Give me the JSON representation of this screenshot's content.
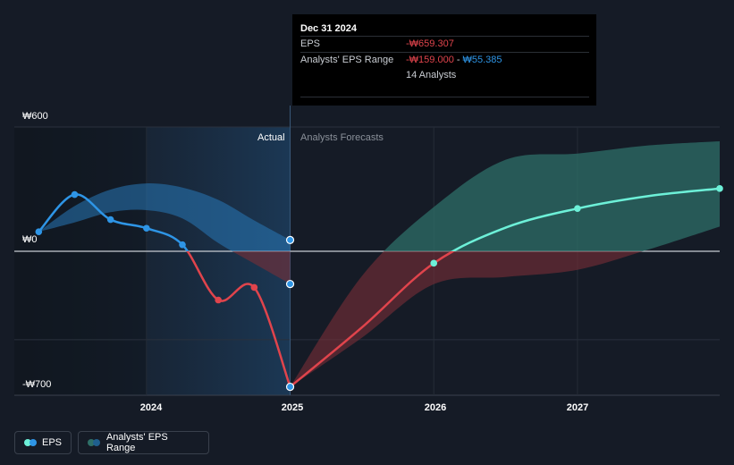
{
  "tooltip": {
    "date": "Dec 31 2024",
    "eps_label": "EPS",
    "eps_value": "-₩659.307",
    "range_label": "Analysts' EPS Range",
    "range_low": "-₩159.000",
    "range_sep": "-",
    "range_high": "₩55.385",
    "analysts": "14 Analysts"
  },
  "regions": {
    "actual": "Actual",
    "forecast": "Analysts Forecasts"
  },
  "legend": {
    "eps": "EPS",
    "range": "Analysts' EPS Range"
  },
  "colors": {
    "background": "#151b26",
    "eps_positive": "#2e95e6",
    "eps_negative": "#e0444c",
    "forecast_line": "#6df0d8",
    "band_positive": "#2e6f68",
    "band_negative": "#7a2e37"
  },
  "chart_data": {
    "type": "line",
    "y_tick_labels": [
      "₩600",
      "₩0",
      "-₩700"
    ],
    "y_ticks": [
      600,
      0,
      -700
    ],
    "ylim": [
      -700,
      600
    ],
    "x_tick_labels": [
      "2024",
      "2025",
      "2026",
      "2027"
    ],
    "x_ticks": [
      2024.0,
      2025.0,
      2026.0,
      2027.0
    ],
    "xlim": [
      2023.08,
      2027.99
    ],
    "actual_eps": {
      "x": [
        2023.25,
        2023.5,
        2023.75,
        2024.0,
        2024.25,
        2024.5,
        2024.75,
        2025.0
      ],
      "y": [
        95,
        276,
        154,
        112,
        32,
        -237,
        -176,
        -659
      ]
    },
    "estimate_points": {
      "x": [
        2025.0,
        2025.0
      ],
      "y": [
        55,
        -159
      ]
    },
    "past_estimate_band": {
      "x": [
        2023.25,
        2023.5,
        2023.75,
        2024.0,
        2024.25,
        2024.5,
        2024.75,
        2025.0
      ],
      "high": [
        95,
        220,
        300,
        330,
        310,
        250,
        150,
        55
      ],
      "low": [
        95,
        140,
        190,
        200,
        160,
        40,
        -60,
        -159
      ]
    },
    "forecast_eps": {
      "x": [
        2025.0,
        2025.5,
        2026.0,
        2026.5,
        2027.0,
        2027.5,
        2027.99
      ],
      "y": [
        -659,
        -370,
        -58,
        115,
        208,
        269,
        305
      ]
    },
    "forecast_band": {
      "x": [
        2025.0,
        2025.5,
        2026.0,
        2026.5,
        2027.0,
        2027.5,
        2027.99
      ],
      "high": [
        -659,
        -120,
        215,
        445,
        475,
        515,
        535
      ],
      "low": [
        -659,
        -420,
        -160,
        -125,
        -90,
        10,
        120
      ]
    },
    "current_x": 2025.0,
    "grid": true
  }
}
